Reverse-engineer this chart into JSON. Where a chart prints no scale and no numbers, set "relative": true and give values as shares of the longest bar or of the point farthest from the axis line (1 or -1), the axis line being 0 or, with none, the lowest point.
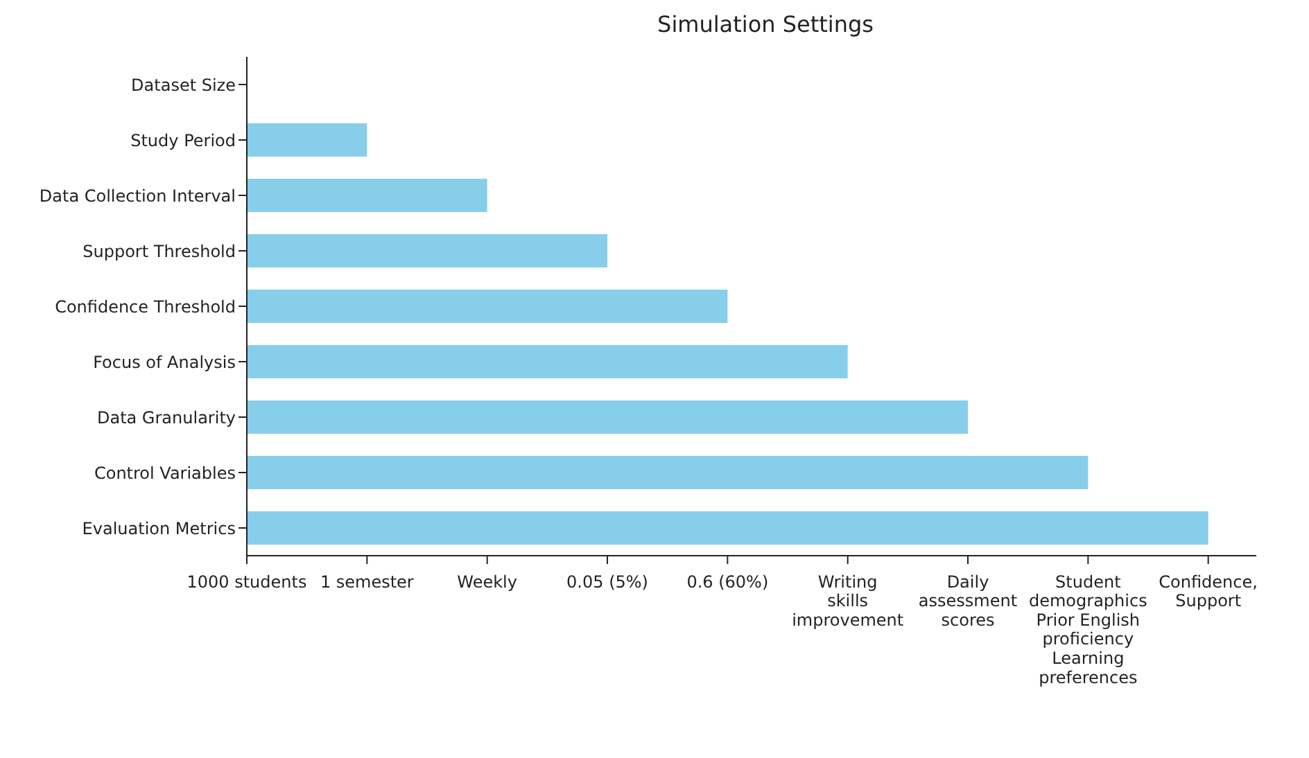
{
  "chart_data": {
    "type": "bar",
    "orientation": "horizontal",
    "title": "Simulation Settings",
    "relative": true,
    "categories": [
      "Dataset Size",
      "Study Period",
      "Data Collection Interval",
      "Support Threshold",
      "Confidence Threshold",
      "Focus of Analysis",
      "Data Granularity",
      "Control Variables",
      "Evaluation Metrics"
    ],
    "values": [
      0,
      0.125,
      0.25,
      0.375,
      0.5,
      0.625,
      0.75,
      0.875,
      1
    ],
    "color": "#87ceeb",
    "annotations": [
      "1000 students",
      "1 semester",
      "Weekly",
      "0.05 (5%)",
      "0.6 (60%)",
      "Writing skills improvement",
      "Daily assessment scores",
      "Student demographics\nPrior English proficiency\nLearning preferences",
      "Confidence, Support"
    ]
  }
}
